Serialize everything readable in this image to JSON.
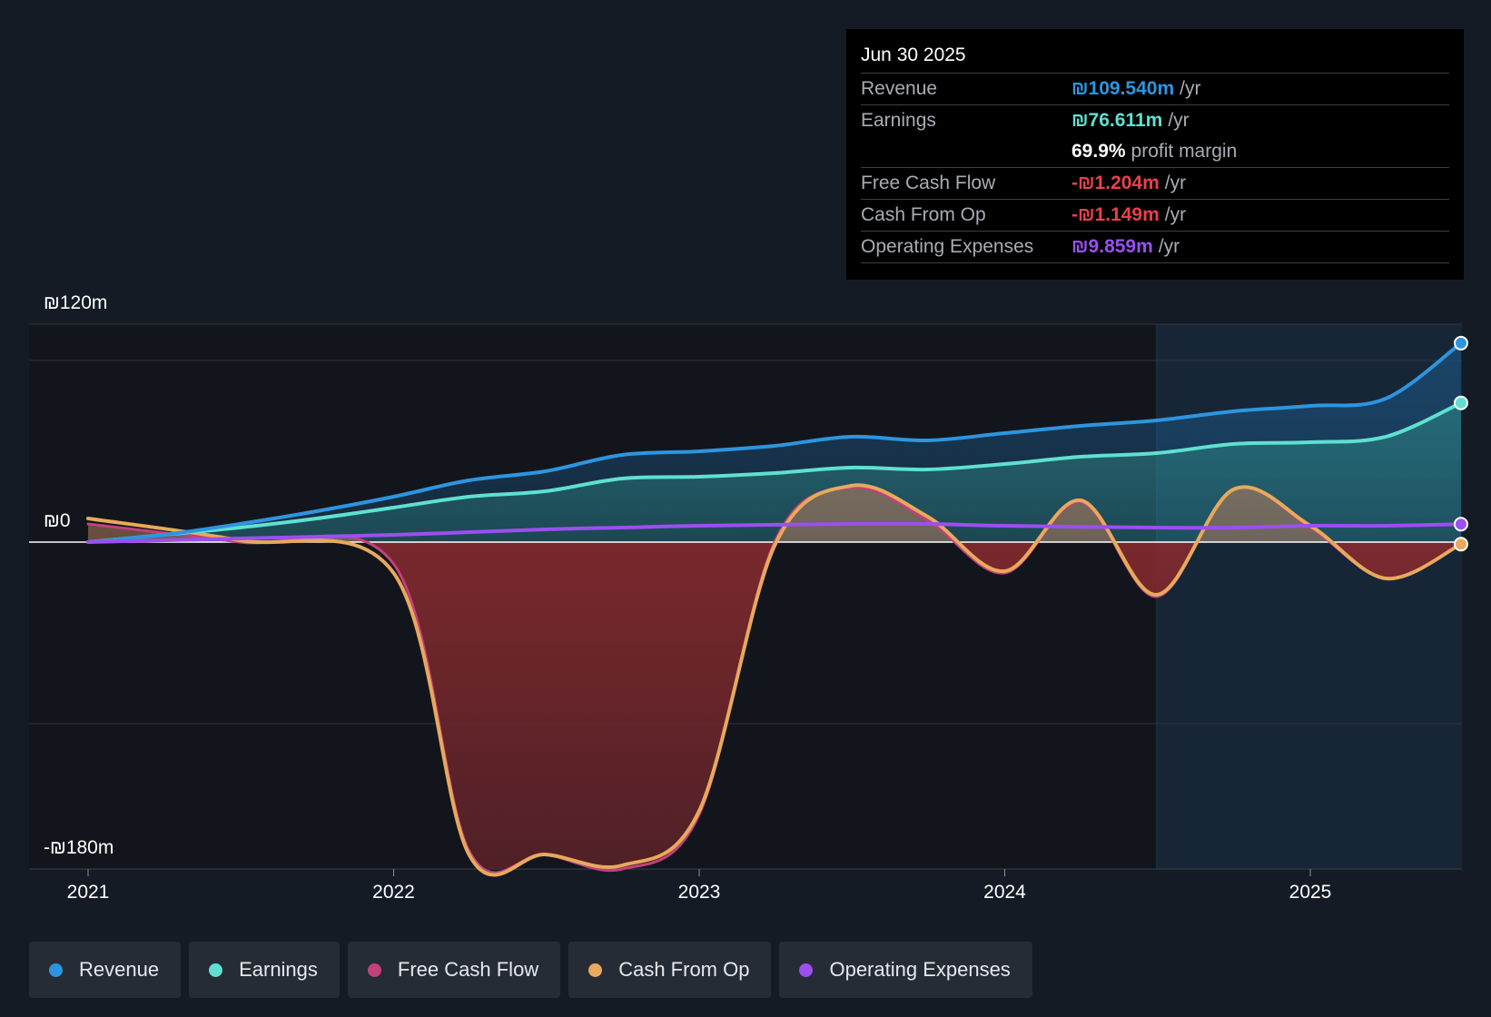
{
  "chart_data": {
    "type": "area",
    "x_ticks": [
      "2021",
      "2022",
      "2023",
      "2024",
      "2025"
    ],
    "y_labels": {
      "top": "₪120m",
      "zero": "₪0",
      "bottom": "-₪180m"
    },
    "ylim": [
      -180,
      120
    ],
    "x_range": [
      "2021-01-01",
      "2025-06-30"
    ],
    "grid": true,
    "forecast_shaded_from": "2024-07-01",
    "legend_position": "bottom",
    "series": [
      {
        "name": "Revenue",
        "color": "#2d95e0",
        "points": [
          [
            "2021-01-01",
            0
          ],
          [
            "2021-04-01",
            4
          ],
          [
            "2021-07-01",
            10
          ],
          [
            "2021-10-01",
            17
          ],
          [
            "2022-01-01",
            25
          ],
          [
            "2022-04-01",
            34
          ],
          [
            "2022-07-01",
            39
          ],
          [
            "2022-10-01",
            48
          ],
          [
            "2023-01-01",
            50
          ],
          [
            "2023-04-01",
            53
          ],
          [
            "2023-07-01",
            58
          ],
          [
            "2023-10-01",
            56
          ],
          [
            "2024-01-01",
            60
          ],
          [
            "2024-04-01",
            64
          ],
          [
            "2024-07-01",
            67
          ],
          [
            "2024-10-01",
            72
          ],
          [
            "2025-01-01",
            75
          ],
          [
            "2025-04-01",
            79
          ],
          [
            "2025-06-30",
            109.54
          ]
        ]
      },
      {
        "name": "Earnings",
        "color": "#5fe0d0",
        "points": [
          [
            "2021-01-01",
            0
          ],
          [
            "2021-04-01",
            4
          ],
          [
            "2021-07-01",
            8
          ],
          [
            "2021-10-01",
            13
          ],
          [
            "2022-01-01",
            19
          ],
          [
            "2022-04-01",
            25
          ],
          [
            "2022-07-01",
            28
          ],
          [
            "2022-10-01",
            35
          ],
          [
            "2023-01-01",
            36
          ],
          [
            "2023-04-01",
            38
          ],
          [
            "2023-07-01",
            41
          ],
          [
            "2023-10-01",
            40
          ],
          [
            "2024-01-01",
            43
          ],
          [
            "2024-04-01",
            47
          ],
          [
            "2024-07-01",
            49
          ],
          [
            "2024-10-01",
            54
          ],
          [
            "2025-01-01",
            55
          ],
          [
            "2025-04-01",
            58
          ],
          [
            "2025-06-30",
            76.611
          ]
        ]
      },
      {
        "name": "Free Cash Flow",
        "color": "#c2417a",
        "points": [
          [
            "2021-01-01",
            10
          ],
          [
            "2021-07-01",
            0
          ],
          [
            "2022-01-01",
            -12
          ],
          [
            "2022-04-01",
            -170
          ],
          [
            "2022-07-01",
            -172
          ],
          [
            "2022-10-01",
            -180
          ],
          [
            "2023-01-01",
            -150
          ],
          [
            "2023-04-01",
            0
          ],
          [
            "2023-07-01",
            30
          ],
          [
            "2023-10-01",
            12
          ],
          [
            "2024-01-01",
            -17
          ],
          [
            "2024-04-01",
            22
          ],
          [
            "2024-07-01",
            -30
          ],
          [
            "2024-10-01",
            29
          ],
          [
            "2025-01-01",
            8
          ],
          [
            "2025-04-01",
            -20
          ],
          [
            "2025-06-30",
            -1.204
          ]
        ]
      },
      {
        "name": "Cash From Op",
        "color": "#e8a95c",
        "points": [
          [
            "2021-01-01",
            13
          ],
          [
            "2021-07-01",
            1
          ],
          [
            "2022-01-01",
            -17
          ],
          [
            "2022-04-01",
            -172
          ],
          [
            "2022-07-01",
            -172
          ],
          [
            "2022-10-01",
            -178
          ],
          [
            "2023-01-01",
            -148
          ],
          [
            "2023-04-01",
            -2
          ],
          [
            "2023-07-01",
            31
          ],
          [
            "2023-10-01",
            14
          ],
          [
            "2024-01-01",
            -16
          ],
          [
            "2024-04-01",
            23
          ],
          [
            "2024-07-01",
            -29
          ],
          [
            "2024-10-01",
            29
          ],
          [
            "2025-01-01",
            9
          ],
          [
            "2025-04-01",
            -20
          ],
          [
            "2025-06-30",
            -1.149
          ]
        ]
      },
      {
        "name": "Operating Expenses",
        "color": "#9b4ff0",
        "points": [
          [
            "2021-01-01",
            0
          ],
          [
            "2021-07-01",
            2
          ],
          [
            "2022-01-01",
            4
          ],
          [
            "2022-07-01",
            7
          ],
          [
            "2022-10-01",
            8
          ],
          [
            "2023-01-01",
            9
          ],
          [
            "2023-07-01",
            10
          ],
          [
            "2023-10-01",
            10
          ],
          [
            "2024-01-01",
            9
          ],
          [
            "2024-07-01",
            8
          ],
          [
            "2024-10-01",
            8
          ],
          [
            "2025-01-01",
            9
          ],
          [
            "2025-04-01",
            9
          ],
          [
            "2025-06-30",
            9.859
          ]
        ]
      }
    ]
  },
  "tooltip": {
    "date": "Jun 30 2025",
    "rows": [
      {
        "label": "Revenue",
        "value": "₪109.540m",
        "unit": "/yr",
        "color": "#2d95e0"
      },
      {
        "label": "Earnings",
        "value": "₪76.611m",
        "unit": "/yr",
        "color": "#5fe0d0"
      },
      {
        "label": "",
        "value": "69.9%",
        "unit": "profit margin",
        "color": "#ffffff"
      },
      {
        "label": "Free Cash Flow",
        "value": "-₪1.204m",
        "unit": "/yr",
        "color": "#e8414a"
      },
      {
        "label": "Cash From Op",
        "value": "-₪1.149m",
        "unit": "/yr",
        "color": "#e8414a"
      },
      {
        "label": "Operating Expenses",
        "value": "₪9.859m",
        "unit": "/yr",
        "color": "#9b4ff0"
      }
    ]
  },
  "legend": [
    {
      "label": "Revenue",
      "color": "#2d95e0"
    },
    {
      "label": "Earnings",
      "color": "#5fe0d0"
    },
    {
      "label": "Free Cash Flow",
      "color": "#c2417a"
    },
    {
      "label": "Cash From Op",
      "color": "#e8a95c"
    },
    {
      "label": "Operating Expenses",
      "color": "#9b4ff0"
    }
  ]
}
